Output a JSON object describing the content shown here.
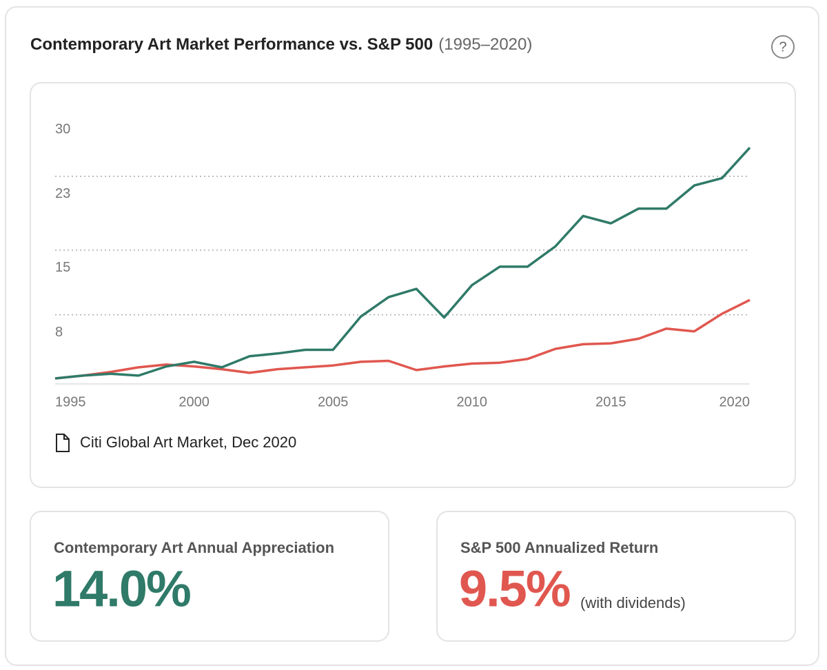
{
  "header": {
    "title": "Contemporary Art Market Performance vs. S&P 500",
    "subtitle": "(1995–2020)",
    "help": "?"
  },
  "chart_data": {
    "type": "line",
    "x": [
      1995,
      1996,
      1997,
      1998,
      1999,
      2000,
      2001,
      2002,
      2003,
      2004,
      2005,
      2006,
      2007,
      2008,
      2009,
      2010,
      2011,
      2012,
      2013,
      2014,
      2015,
      2016,
      2017,
      2018,
      2019,
      2020
    ],
    "series": [
      {
        "color": "#2f7a68",
        "values": [
          1.1,
          1.4,
          1.6,
          1.4,
          2.4,
          2.9,
          2.3,
          3.5,
          3.8,
          4.2,
          4.2,
          7.8,
          9.9,
          10.8,
          7.7,
          11.2,
          13.2,
          13.2,
          15.4,
          18.7,
          17.9,
          19.5,
          19.5,
          22.0,
          22.8,
          26.1
        ]
      },
      {
        "color": "#e0574f",
        "values": [
          1.1,
          1.4,
          1.8,
          2.3,
          2.6,
          2.4,
          2.1,
          1.7,
          2.1,
          2.3,
          2.5,
          2.9,
          3.0,
          2.0,
          2.4,
          2.7,
          2.8,
          3.2,
          4.3,
          4.8,
          4.9,
          5.4,
          6.5,
          6.2,
          8.1,
          9.6
        ]
      }
    ],
    "xlim": [
      1995,
      2020
    ],
    "xticks": [
      1995,
      2000,
      2005,
      2010,
      2015,
      2020
    ],
    "ylim": [
      0.5,
      30
    ],
    "yticks": [
      8,
      15,
      23,
      30
    ],
    "grid": true,
    "source": "Citi Global Art Market, Dec 2020"
  },
  "stats": [
    {
      "label": "Contemporary Art Annual Appreciation",
      "value": "14.0%",
      "color": "#2f7a68"
    },
    {
      "label": "S&P 500 Annualized Return",
      "value": "9.5%",
      "note": "(with dividends)",
      "color": "#e0574f"
    }
  ]
}
